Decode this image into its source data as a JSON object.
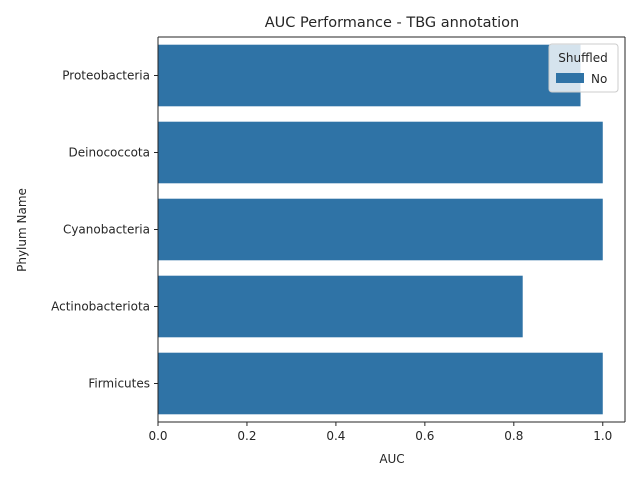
{
  "chart_data": {
    "type": "bar",
    "orientation": "horizontal",
    "title": "AUC Performance - TBG annotation",
    "xlabel": "AUC",
    "ylabel": "Phylum Name",
    "categories": [
      "Proteobacteria",
      "Deinococcota",
      "Cyanobacteria",
      "Actinobacteriota",
      "Firmicutes"
    ],
    "series": [
      {
        "name": "No",
        "color": "#2f73a6",
        "values": [
          0.95,
          1.0,
          1.0,
          0.82,
          1.0
        ]
      }
    ],
    "xlim": [
      0,
      1.05
    ],
    "x_ticks": [
      "0.0",
      "0.2",
      "0.4",
      "0.6",
      "0.8",
      "1.0"
    ],
    "grid": false,
    "legend": {
      "title": "Shuffled",
      "placement": "top-right"
    }
  }
}
